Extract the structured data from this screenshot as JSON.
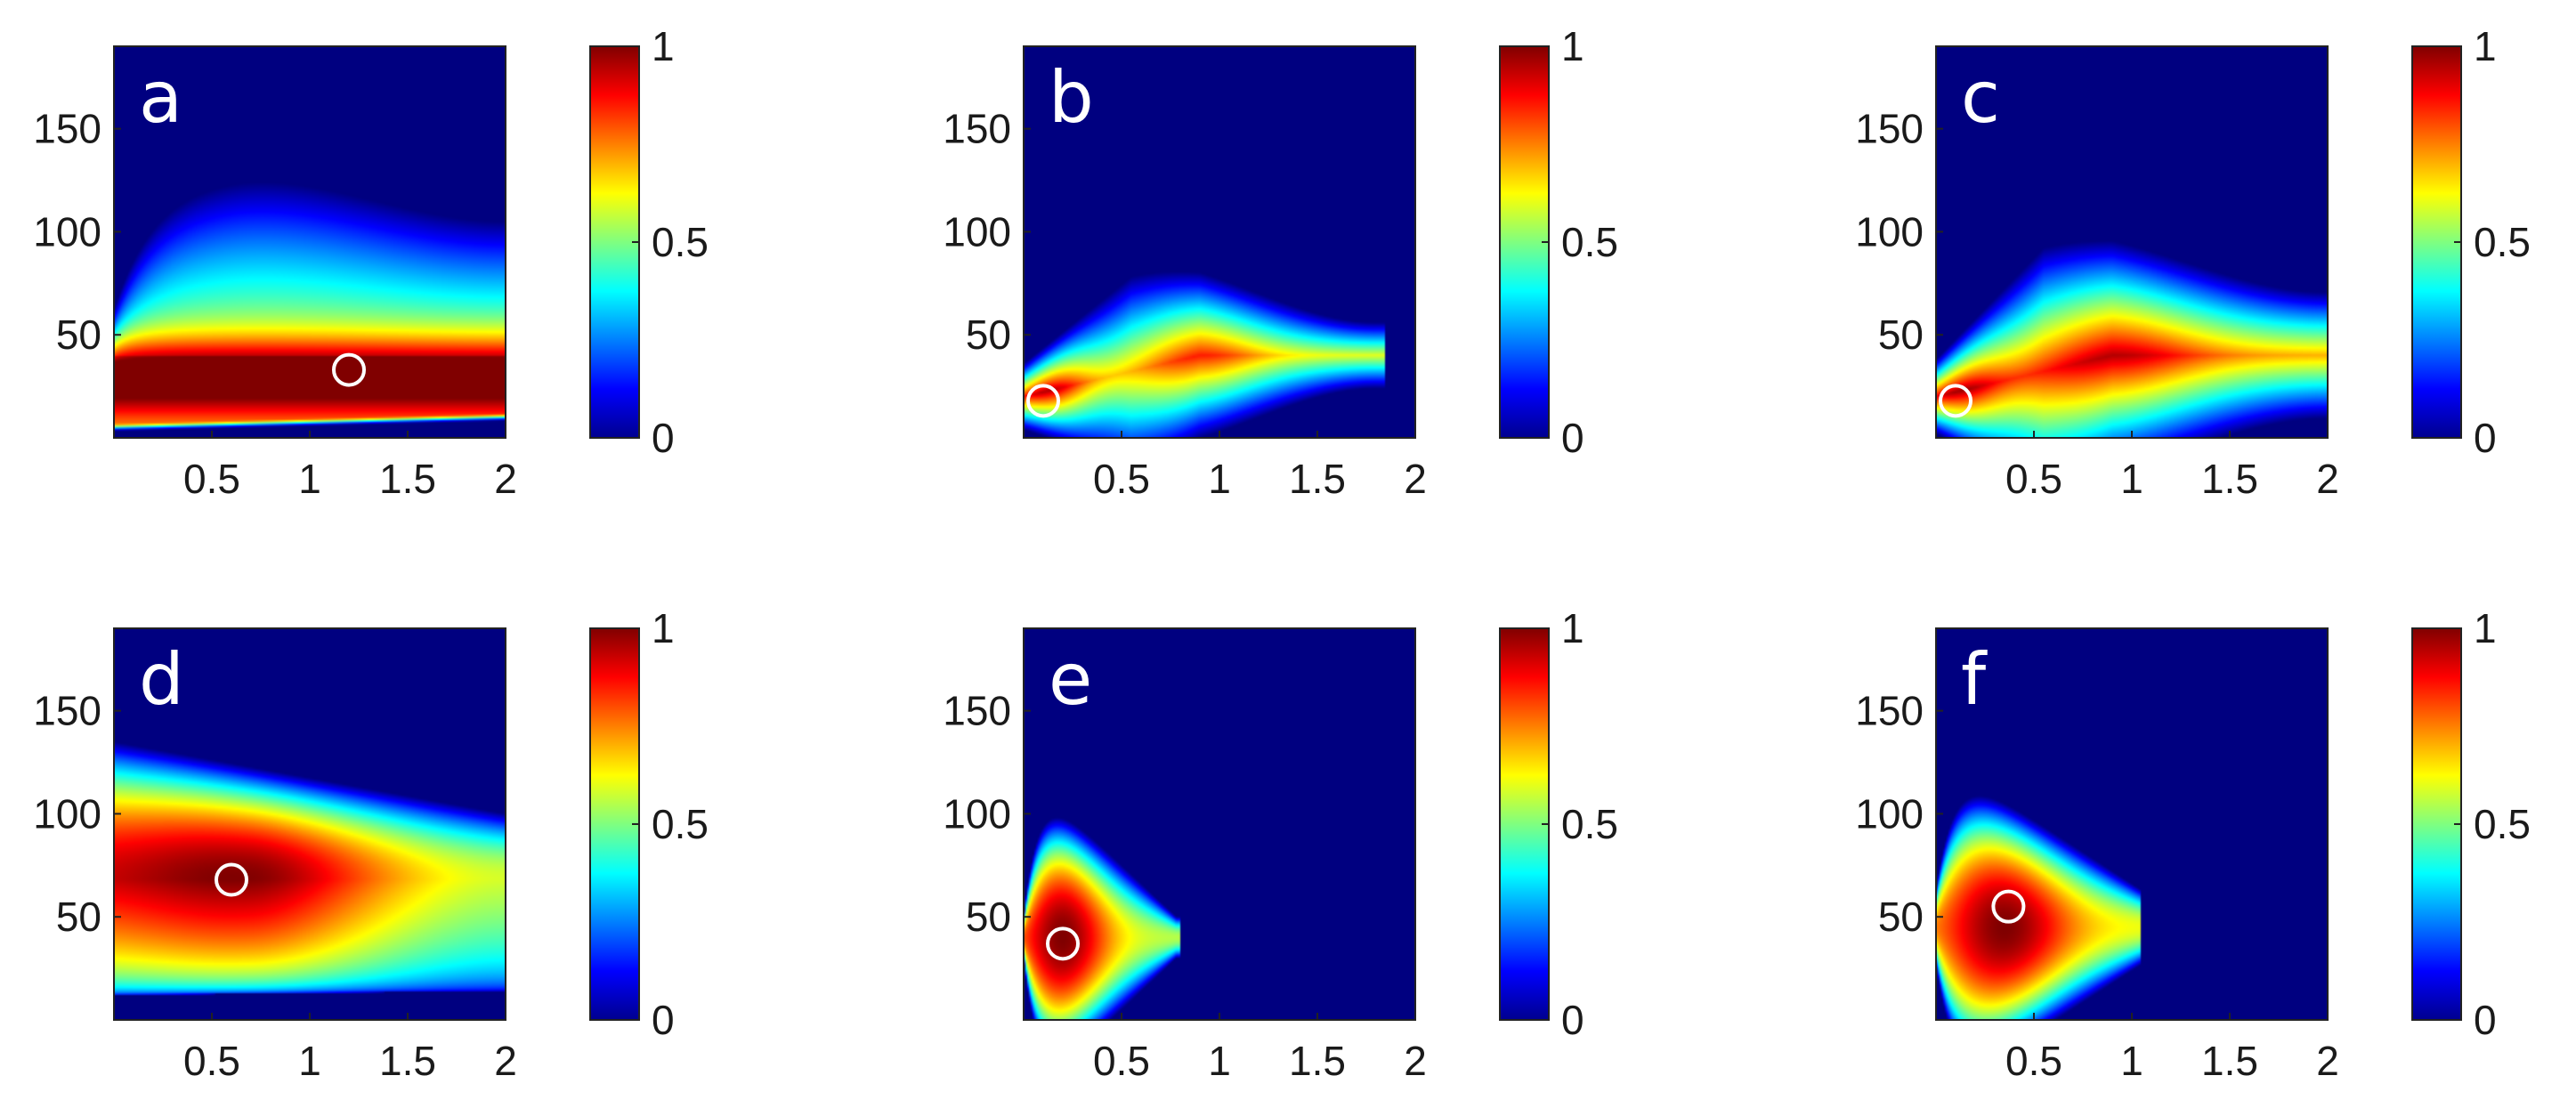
{
  "chart_data": [
    {
      "type": "heatmap",
      "panel_label": "a",
      "x_ticks": [
        "0.5",
        "1",
        "1.5",
        "2"
      ],
      "y_ticks": [
        "50",
        "100",
        "150"
      ],
      "xlim": [
        0,
        2
      ],
      "ylim": [
        0,
        190
      ],
      "colorbar": {
        "ticks": [
          "0",
          "0.5",
          "1"
        ],
        "range": [
          0,
          1
        ],
        "colormap": "jet"
      },
      "marker": {
        "x": 1.2,
        "y": 33
      },
      "field": "broad"
    },
    {
      "type": "heatmap",
      "panel_label": "b",
      "x_ticks": [
        "0.5",
        "1",
        "1.5",
        "2"
      ],
      "y_ticks": [
        "50",
        "100",
        "150"
      ],
      "xlim": [
        0,
        2
      ],
      "ylim": [
        0,
        190
      ],
      "colorbar": {
        "ticks": [
          "0",
          "0.5",
          "1"
        ],
        "range": [
          0,
          1
        ],
        "colormap": "jet"
      },
      "marker": {
        "x": 0.1,
        "y": 18
      },
      "field": "wedge-small"
    },
    {
      "type": "heatmap",
      "panel_label": "c",
      "x_ticks": [
        "0.5",
        "1",
        "1.5",
        "2"
      ],
      "y_ticks": [
        "50",
        "100",
        "150"
      ],
      "xlim": [
        0,
        2
      ],
      "ylim": [
        0,
        190
      ],
      "colorbar": {
        "ticks": [
          "0",
          "0.5",
          "1"
        ],
        "range": [
          0,
          1
        ],
        "colormap": "jet"
      },
      "marker": {
        "x": 0.1,
        "y": 18
      },
      "field": "wedge-large"
    },
    {
      "type": "heatmap",
      "panel_label": "d",
      "x_ticks": [
        "0.5",
        "1",
        "1.5",
        "2"
      ],
      "y_ticks": [
        "50",
        "100",
        "150"
      ],
      "xlim": [
        0,
        2
      ],
      "ylim": [
        0,
        190
      ],
      "colorbar": {
        "ticks": [
          "0",
          "0.5",
          "1"
        ],
        "range": [
          0,
          1
        ],
        "colormap": "jet"
      },
      "marker": {
        "x": 0.6,
        "y": 68
      },
      "field": "broad-high"
    },
    {
      "type": "heatmap",
      "panel_label": "e",
      "x_ticks": [
        "0.5",
        "1",
        "1.5",
        "2"
      ],
      "y_ticks": [
        "50",
        "100",
        "150"
      ],
      "xlim": [
        0,
        2
      ],
      "ylim": [
        0,
        190
      ],
      "colorbar": {
        "ticks": [
          "0",
          "0.5",
          "1"
        ],
        "range": [
          0,
          1
        ],
        "colormap": "jet"
      },
      "marker": {
        "x": 0.2,
        "y": 37
      },
      "field": "thin-lobe"
    },
    {
      "type": "heatmap",
      "panel_label": "f",
      "x_ticks": [
        "0.5",
        "1",
        "1.5",
        "2"
      ],
      "y_ticks": [
        "50",
        "100",
        "150"
      ],
      "xlim": [
        0,
        2
      ],
      "ylim": [
        0,
        190
      ],
      "colorbar": {
        "ticks": [
          "0",
          "0.5",
          "1"
        ],
        "range": [
          0,
          1
        ],
        "colormap": "jet"
      },
      "marker": {
        "x": 0.37,
        "y": 55
      },
      "field": "lobe"
    }
  ]
}
